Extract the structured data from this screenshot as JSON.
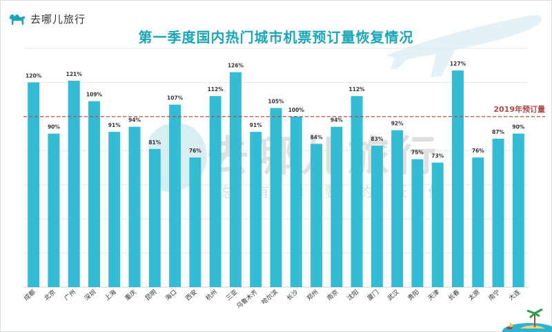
{
  "header": {
    "brand_name": "去哪儿旅行",
    "title": "第一季度国内热门城市机票预订量恢复情况"
  },
  "watermark": {
    "main": "去哪儿旅行",
    "sub": "总有你要的低价"
  },
  "colors": {
    "bar": "#33bcd4",
    "title": "#1aa6b7",
    "reference_line": "#b04a4a",
    "gridline": "#e6e6e6"
  },
  "chart_data": {
    "type": "bar",
    "title": "第一季度国内热门城市机票预订量恢复情况",
    "categories": [
      "成都",
      "北京",
      "广州",
      "深圳",
      "上海",
      "重庆",
      "昆明",
      "海口",
      "西安",
      "杭州",
      "三亚",
      "乌鲁木齐",
      "哈尔滨",
      "长沙",
      "郑州",
      "南京",
      "沈阳",
      "厦门",
      "武汉",
      "贵阳",
      "天津",
      "长春",
      "太原",
      "南宁",
      "大连"
    ],
    "values": [
      120,
      90,
      121,
      109,
      91,
      94,
      81,
      107,
      76,
      112,
      126,
      91,
      105,
      100,
      84,
      94,
      112,
      83,
      92,
      75,
      73,
      127,
      76,
      87,
      90
    ],
    "value_labels": [
      "120%",
      "90%",
      "121%",
      "109%",
      "91%",
      "94%",
      "81%",
      "107%",
      "76%",
      "112%",
      "126%",
      "91%",
      "105%",
      "100%",
      "84%",
      "94%",
      "112%",
      "83%",
      "92%",
      "75%",
      "73%",
      "127%",
      "76%",
      "87%",
      "90%"
    ],
    "reference_line": {
      "value": 100,
      "label": "2019年预订量"
    },
    "ylim": [
      0,
      140
    ],
    "grid": true,
    "xlabel": "",
    "ylabel": ""
  }
}
